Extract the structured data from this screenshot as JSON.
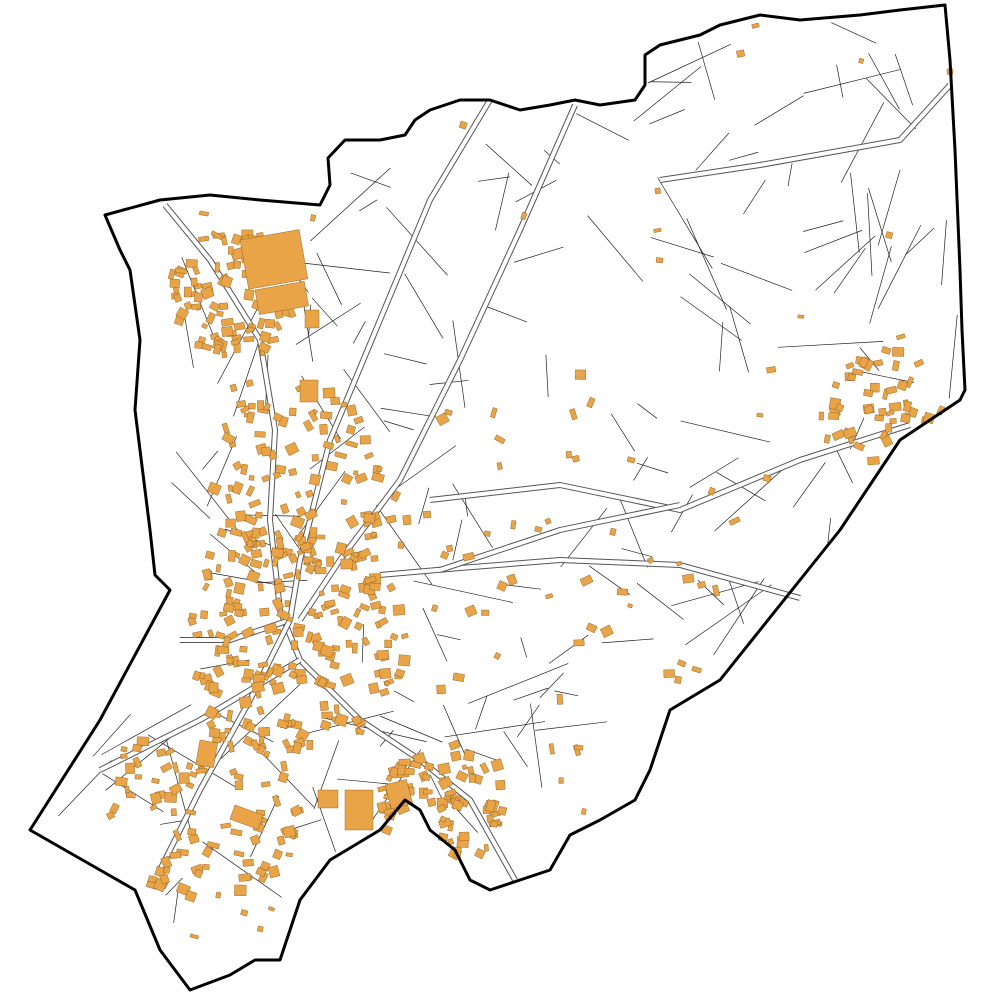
{
  "map": {
    "type": "cadastral-plan",
    "colors": {
      "background": "#ffffff",
      "boundary": "#000000",
      "parcel_line": "#222222",
      "road_edge": "#555555",
      "building_fill": "#E8A447",
      "building_outline": "#8a5a1c"
    }
  }
}
